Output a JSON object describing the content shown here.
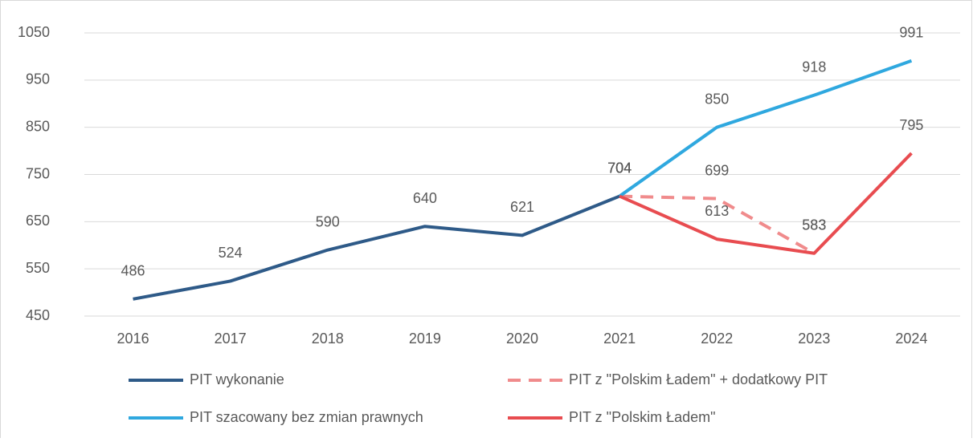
{
  "chart_data": {
    "type": "line",
    "categories": [
      "2016",
      "2017",
      "2018",
      "2019",
      "2020",
      "2021",
      "2022",
      "2023",
      "2024"
    ],
    "series": [
      {
        "name": "PIT wykonanie",
        "color": "#2e5a88",
        "style": "solid",
        "values": [
          486,
          524,
          590,
          640,
          621,
          704,
          null,
          null,
          null
        ]
      },
      {
        "name": "PIT z \"Polskim Ładem\" + dodatkowy PIT",
        "color": "#f08b8c",
        "style": "dashed",
        "values": [
          null,
          null,
          null,
          null,
          null,
          704,
          699,
          583,
          null
        ]
      },
      {
        "name": "PIT szacowany bez zmian prawnych",
        "color": "#2fa8df",
        "style": "solid",
        "values": [
          null,
          null,
          null,
          null,
          null,
          704,
          850,
          918,
          991
        ]
      },
      {
        "name": "PIT z \"Polskim Ładem\"",
        "color": "#e84c50",
        "style": "solid",
        "values": [
          null,
          null,
          null,
          null,
          null,
          704,
          613,
          583,
          795
        ]
      }
    ],
    "ylim": [
      450,
      1050
    ],
    "yticks": [
      450,
      550,
      650,
      750,
      850,
      950,
      1050
    ],
    "grid": true
  }
}
